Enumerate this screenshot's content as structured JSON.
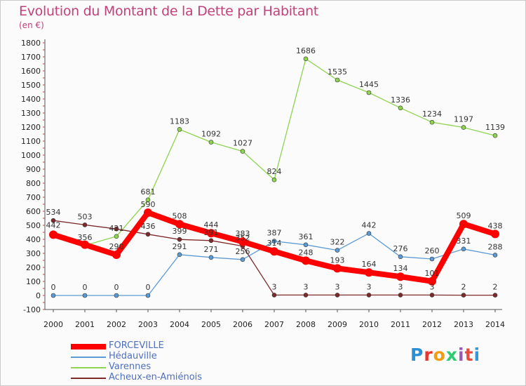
{
  "title": "Evolution du Montant de la Dette par Habitant",
  "subtitle": "(en €)",
  "logo": {
    "text": "Proxiti",
    "colors": [
      "#2b8fd6",
      "#e8342a",
      "#f39c12",
      "#2ecc71",
      "#9b59b6",
      "#e74c3c",
      "#3498db"
    ]
  },
  "chart_data": {
    "type": "line",
    "x": [
      "2000",
      "2001",
      "2002",
      "2003",
      "2004",
      "2005",
      "2006",
      "2007",
      "2008",
      "2009",
      "2010",
      "2011",
      "2012",
      "2013",
      "2014"
    ],
    "ylim": [
      -100,
      1800
    ],
    "yticks": [
      -100,
      0,
      100,
      200,
      300,
      400,
      500,
      600,
      700,
      800,
      900,
      1000,
      1100,
      1200,
      1300,
      1400,
      1500,
      1600,
      1700,
      1800
    ],
    "grid": false,
    "legend": "bottom-left",
    "series": [
      {
        "name": "FORCEVILLE",
        "color": "#ff0000",
        "values": [
          433,
          362,
          290,
          590,
          508,
          444,
          383,
          314,
          248,
          193,
          164,
          134,
          101,
          509,
          438
        ],
        "labels": [
          "",
          "",
          "290",
          "590",
          "508",
          "444",
          "383",
          "314",
          "248",
          "193",
          "164",
          "134",
          "101",
          "509",
          "438"
        ]
      },
      {
        "name": "Hédauville",
        "color": "#5b9bd5",
        "values": [
          0,
          0,
          0,
          0,
          291,
          271,
          256,
          387,
          361,
          322,
          442,
          276,
          260,
          331,
          288
        ],
        "labels": [
          "0",
          "0",
          "0",
          "0",
          "291",
          "271",
          "256",
          "387",
          "361",
          "322",
          "442",
          "276",
          "260",
          "331",
          "288"
        ]
      },
      {
        "name": "Varennes",
        "color": "#8ed44f",
        "values": [
          442,
          356,
          421,
          681,
          1183,
          1092,
          1027,
          824,
          1686,
          1535,
          1445,
          1336,
          1234,
          1197,
          1139
        ],
        "labels": [
          "442",
          "356",
          "421",
          "681",
          "1183",
          "1092",
          "1027",
          "824",
          "1686",
          "1535",
          "1445",
          "1336",
          "1234",
          "1197",
          "1139"
        ]
      },
      {
        "name": "Acheux-en-Amiénois",
        "color": "#7f2a2a",
        "values": [
          534,
          503,
          474,
          436,
          399,
          391,
          352,
          3,
          3,
          3,
          3,
          3,
          3,
          2,
          2
        ],
        "labels": [
          "534",
          "503",
          "",
          "436",
          "399",
          "391",
          "352",
          "3",
          "3",
          "3",
          "3",
          "3",
          "3",
          "2",
          "2"
        ]
      }
    ],
    "legend_entries": [
      "FORCEVILLE",
      "Hédauville",
      "Varennes",
      "Acheux-en-Amiénois"
    ]
  }
}
